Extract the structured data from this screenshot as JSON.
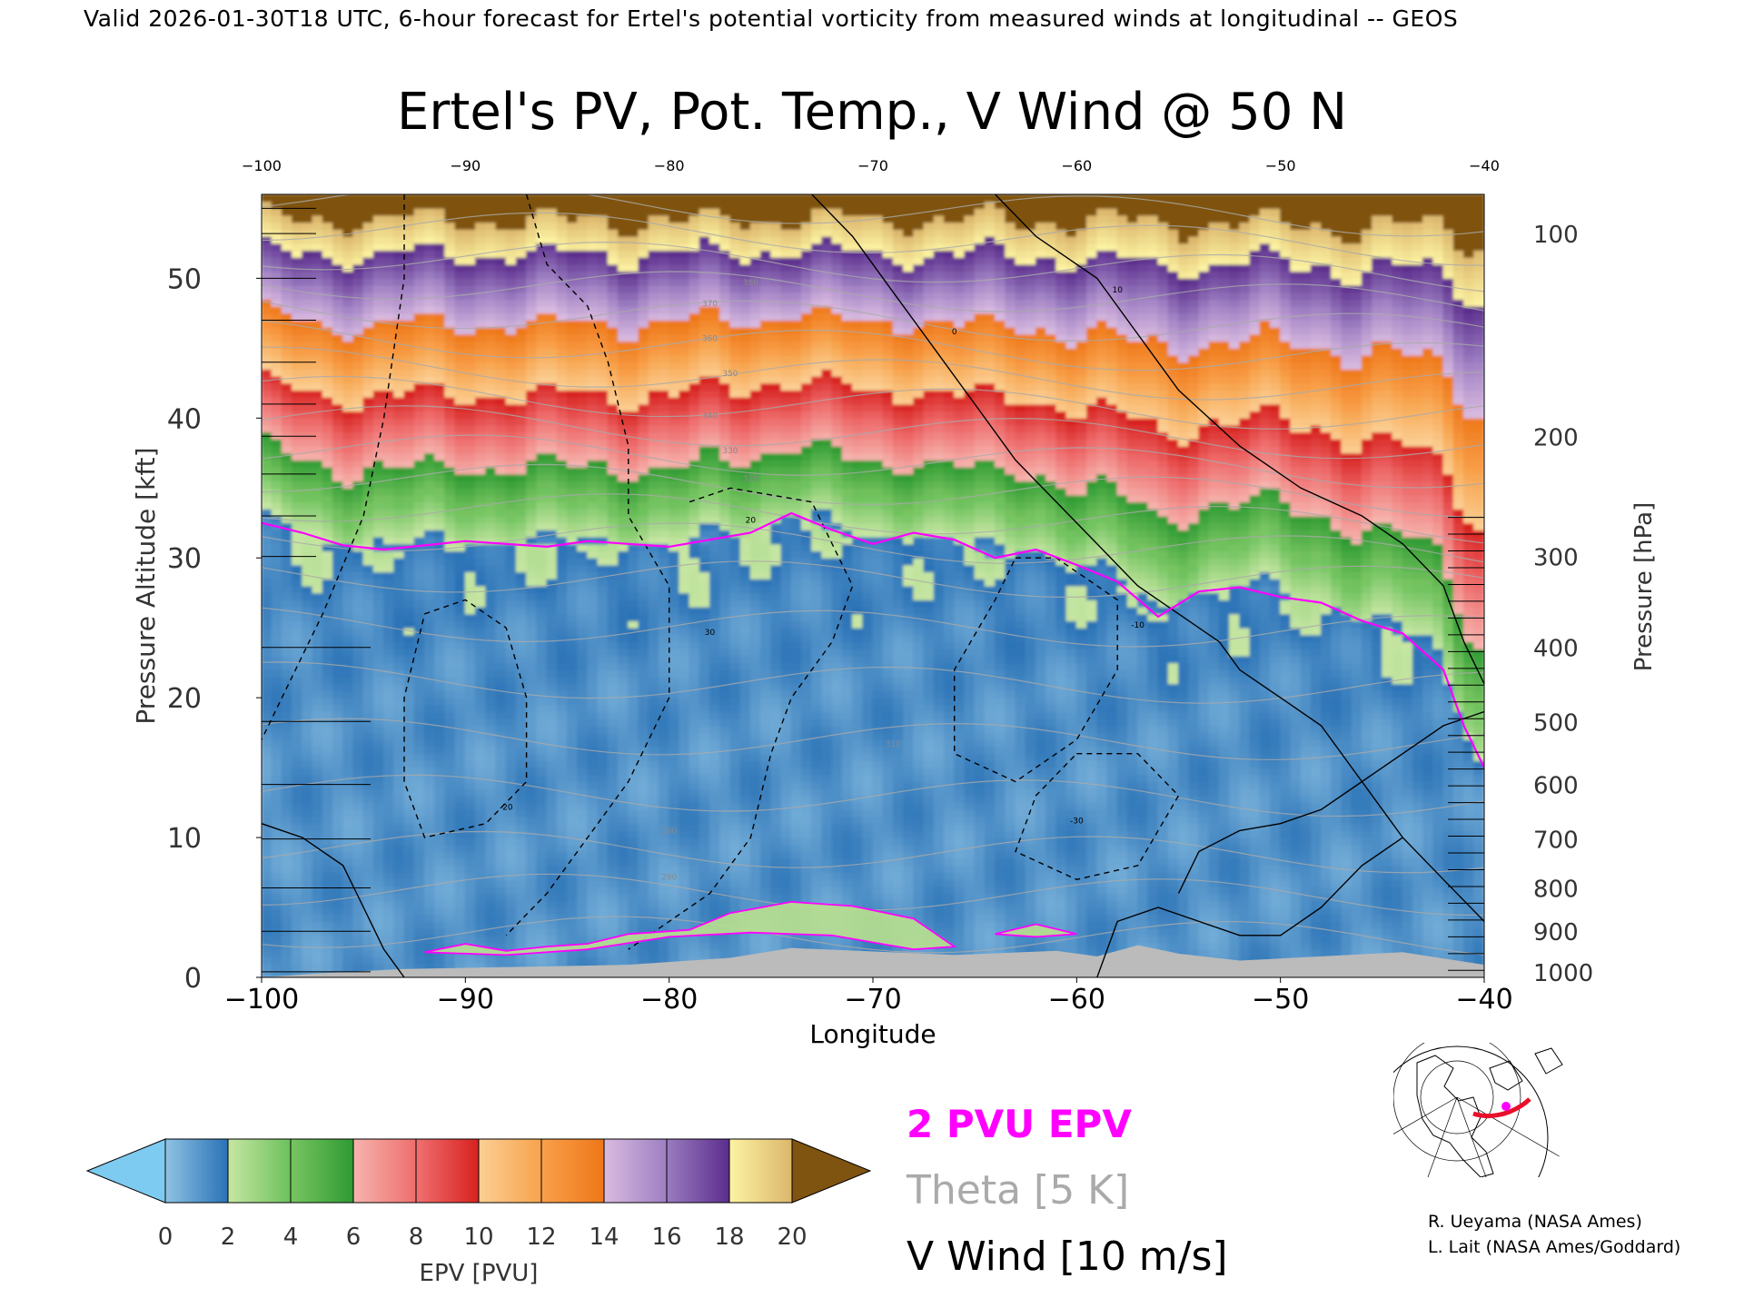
{
  "header": {
    "valid_line": "Valid 2026-01-30T18 UTC, 6-hour forecast for Ertel's potential vorticity from measured winds at longitudinal -- GEOS"
  },
  "chart_data": {
    "type": "heatmap",
    "title": "Ertel's PV, Pot. Temp., V Wind @ 50 N",
    "xlabel": "Longitude",
    "ylabel_left": "Pressure Altitude [kft]",
    "ylabel_right": "Pressure [hPa]",
    "xlim": [
      -100,
      -40
    ],
    "ylim": [
      0,
      56
    ],
    "x_ticks": [
      "-100",
      "-90",
      "-80",
      "-70",
      "-60",
      "-50",
      "-40"
    ],
    "top_x_ticks": [
      "-100",
      "-90",
      "-80",
      "-70",
      "-60",
      "-50",
      "-40"
    ],
    "y_ticks_left": [
      "0",
      "10",
      "20",
      "30",
      "40",
      "50"
    ],
    "y_ticks_right": [
      {
        "label": "1000",
        "kft": 0.4
      },
      {
        "label": "900",
        "kft": 3.3
      },
      {
        "label": "800",
        "kft": 6.4
      },
      {
        "label": "700",
        "kft": 9.9
      },
      {
        "label": "600",
        "kft": 13.8
      },
      {
        "label": "500",
        "kft": 18.3
      },
      {
        "label": "400",
        "kft": 23.6
      },
      {
        "label": "300",
        "kft": 30.1
      },
      {
        "label": "200",
        "kft": 38.7
      },
      {
        "label": "100",
        "kft": 53.2
      }
    ],
    "tropopause_2pvu_kft": {
      "lon": [
        -100,
        -98,
        -96,
        -94,
        -92,
        -90,
        -88,
        -86,
        -84,
        -82,
        -80,
        -78,
        -76,
        -74,
        -72,
        -70,
        -68,
        -66,
        -64,
        -62,
        -60,
        -58,
        -56,
        -54,
        -52,
        -50,
        -48,
        -46,
        -44,
        -42,
        -41,
        -40
      ],
      "kft": [
        32.5,
        31.8,
        30.9,
        30.6,
        30.9,
        31.2,
        31.0,
        30.8,
        31.2,
        31.0,
        30.8,
        31.3,
        31.8,
        33.2,
        32.0,
        31.0,
        31.8,
        31.3,
        30.0,
        30.6,
        29.5,
        28.3,
        25.8,
        27.6,
        27.9,
        27.2,
        26.8,
        25.5,
        24.6,
        22.0,
        18.0,
        15.0
      ]
    },
    "epv_field": {
      "surface_pvu": 1.2,
      "tropo_pvu": 2.0,
      "top_pvu": 20.0,
      "top_kft": 56
    },
    "colorbar": {
      "label": "EPV [PVU]",
      "ticks": [
        "0",
        "2",
        "4",
        "6",
        "8",
        "10",
        "12",
        "14",
        "16",
        "18",
        "20"
      ],
      "under_color": "#7ecbf1",
      "over_color": "#7f5310",
      "bins": [
        {
          "from": 0,
          "to": 2,
          "colors": [
            "#8fc3e4",
            "#2a72b6"
          ]
        },
        {
          "from": 2,
          "to": 4,
          "colors": [
            "#c7e6a3",
            "#6cc15c"
          ]
        },
        {
          "from": 4,
          "to": 6,
          "colors": [
            "#79c562",
            "#2e9a32"
          ]
        },
        {
          "from": 6,
          "to": 8,
          "colors": [
            "#f6b4ae",
            "#ee6e6e"
          ]
        },
        {
          "from": 8,
          "to": 10,
          "colors": [
            "#f07070",
            "#d7211f"
          ]
        },
        {
          "from": 10,
          "to": 12,
          "colors": [
            "#fbcf94",
            "#f7a34c"
          ]
        },
        {
          "from": 12,
          "to": 14,
          "colors": [
            "#f9a04b",
            "#ee7718"
          ]
        },
        {
          "from": 14,
          "to": 16,
          "colors": [
            "#d9bbe0",
            "#9e7ec2"
          ]
        },
        {
          "from": 16,
          "to": 18,
          "colors": [
            "#9a7cc0",
            "#5b2d8c"
          ]
        },
        {
          "from": 18,
          "to": 20,
          "colors": [
            "#fcf3a2",
            "#dcb66c"
          ]
        }
      ]
    },
    "legend": [
      {
        "label": "2 PVU EPV",
        "color": "#ff00ff"
      },
      {
        "label": "Theta [5 K]",
        "color": "#aaaaaa"
      },
      {
        "label": "V Wind [10 m/s]",
        "color": "#000000"
      }
    ],
    "theta_labels": [
      "380",
      "370",
      "360",
      "350",
      "340",
      "330",
      "320",
      "310",
      "300",
      "290"
    ],
    "wind_contour_labels": [
      "0",
      "10",
      "-10",
      "20",
      "-20",
      "30",
      "-30"
    ]
  },
  "credits": [
    "R. Ueyama (NASA Ames)",
    "L. Lait (NASA Ames/Goddard)"
  ],
  "inset_map": {
    "alt": "Globe inset map showing cross-section track at 50 N",
    "track_color": "#e8102a",
    "marker_color": "#ff00ff"
  },
  "colors": {
    "tropopause": "#ff00ff",
    "theta": "#aaaaaa",
    "wind": "#000000",
    "terrain": "#bbbbbb"
  }
}
